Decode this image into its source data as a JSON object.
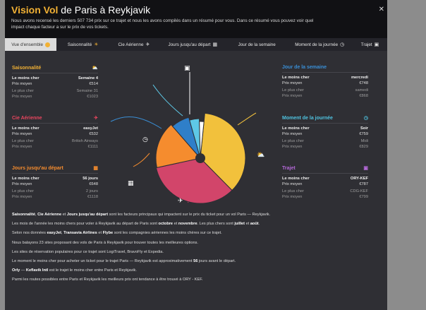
{
  "header": {
    "title_part1": "Vision Vol",
    "title_part2": " de Paris à Reykjavik",
    "description": "Nous avons recensé les derniers 507 734 prix sur ce trajet et nous les avons compilés dans un résumé pour vous. Dans ce résumé vous pouvez voir quel impact chaque facteur a sur le prix de vos tickets.",
    "close_label": "✕"
  },
  "tabs": [
    {
      "label": "Vue d'ensemble",
      "icon": "pie-icon",
      "active": true
    },
    {
      "label": "Saisonnalité",
      "icon": "sun-icon",
      "active": false
    },
    {
      "label": "Cie Aérienne",
      "icon": "plane-icon",
      "active": false
    },
    {
      "label": "Jours jusqu'au départ",
      "icon": "calendar-icon",
      "active": false
    },
    {
      "label": "Jour de la semaine",
      "icon": "",
      "active": false
    },
    {
      "label": "Moment de la journée",
      "icon": "clock-icon",
      "active": false
    },
    {
      "label": "Trajet",
      "icon": "bag-icon",
      "active": false
    }
  ],
  "cards": {
    "saisonnalite": {
      "title": "Saisonnalité",
      "color": "#f2b134",
      "icon": "sun-cloud-icon",
      "cheap_label": "Le moins cher",
      "cheap_value": "Semaine 4",
      "avg_label": "Prix moyen",
      "avg_value": "€514",
      "exp_label": "Le plus cher",
      "exp_value": "Semaine 31",
      "avg2_label": "Prix moyen",
      "avg2_value": "€1023"
    },
    "cie": {
      "title": "Cie Aérienne",
      "color": "#e8455e",
      "icon": "plane-icon",
      "cheap_label": "Le moins cher",
      "cheap_value": "easyJet",
      "avg_label": "Prix moyen",
      "avg_value": "€532",
      "exp_label": "Le plus cher",
      "exp_value": "British Airways",
      "avg2_label": "Prix moyen",
      "avg2_value": "€1111"
    },
    "jours": {
      "title": "Jours jusqu'au départ",
      "color": "#f58c2e",
      "icon": "calendar-icon",
      "cheap_label": "Le moins cher",
      "cheap_value": "56 jours",
      "avg_label": "Prix moyen",
      "avg_value": "€648",
      "exp_label": "Le plus cher",
      "exp_value": "2 jours",
      "avg2_label": "Prix moyen",
      "avg2_value": "€1118"
    },
    "semaine": {
      "title": "Jour de la semaine",
      "color": "#3a8fd6",
      "icon": "",
      "cheap_label": "Le moins cher",
      "cheap_value": "mercredi",
      "avg_label": "Prix moyen",
      "avg_value": "€748",
      "exp_label": "Le plus cher",
      "exp_value": "samedi",
      "avg2_label": "Prix moyen",
      "avg2_value": "€868"
    },
    "moment": {
      "title": "Moment de la journée",
      "color": "#4fc3e0",
      "icon": "clock-icon",
      "cheap_label": "Le moins cher",
      "cheap_value": "Soir",
      "avg_label": "Prix moyen",
      "avg_value": "€759",
      "exp_label": "Le plus cher",
      "exp_value": "Midi",
      "avg2_label": "Prix moyen",
      "avg2_value": "€829"
    },
    "trajet": {
      "title": "Trajet",
      "color": "#b469d8",
      "icon": "bag-icon",
      "cheap_label": "Le moins cher",
      "cheap_value": "ORY-KEF",
      "avg_label": "Prix moyen",
      "avg_value": "€787",
      "exp_label": "Le plus cher",
      "exp_value": "CDG-KEF",
      "avg2_label": "Prix moyen",
      "avg2_value": "€799"
    }
  },
  "pie": {
    "slices": [
      {
        "name": "saisonnalite",
        "color": "#f2c13c",
        "value": 36
      },
      {
        "name": "cie",
        "color": "#d2456a",
        "value": 34
      },
      {
        "name": "jours",
        "color": "#f58c2e",
        "value": 17
      },
      {
        "name": "semaine",
        "color": "#2f7fc9",
        "value": 7
      },
      {
        "name": "moment",
        "color": "#5ec8e6",
        "value": 4
      },
      {
        "name": "trajet",
        "color": "#ffffff",
        "value": 2
      }
    ]
  },
  "paragraphs": {
    "p1_a": "Saisonnalité",
    "p1_b": ", ",
    "p1_c": "Cie Aérienne",
    "p1_d": " et ",
    "p1_e": "Jours jusqu'au départ",
    "p1_f": " sont les facteurs principaux qui impactent sur le prix du ticket pour un vol Paris — Reykjavik.",
    "p2_a": "Les mois de l'année les moins chers pour voler à Reykjavik au départ de Paris sont ",
    "p2_b": "octobre",
    "p2_c": " et ",
    "p2_d": "novembre",
    "p2_e": ". Les plus chers sont ",
    "p2_f": "juillet",
    "p2_g": " et ",
    "p2_h": "août",
    "p2_i": ".",
    "p3_a": "Selon nos données ",
    "p3_b": "easyJet",
    "p3_c": ", ",
    "p3_d": "Transavia Airlines",
    "p3_e": " et ",
    "p3_f": "Flybe",
    "p3_g": " sont les compagnies aériennes les moins chères sur ce trajet.",
    "p4": "Nous balayons 23 sites proposant des vols de Paris à Reykjavik pour trouver toutes les meilleures options.",
    "p5": "Les sites de réservation populaires pour ce trajet sont LogiTravel, BravoFly et Expedia.",
    "p6_a": "Le moment le moins cher pour acheter un ticket pour le trajet Paris — Reykjavik est approximativement ",
    "p6_b": "56",
    "p6_c": " jours avant le départ.",
    "p7_a": "Orly",
    "p7_b": " — ",
    "p7_c": "Keflavik Intl",
    "p7_d": " est le trajet le moins cher entre Paris et Reykjavik.",
    "p8": "Parmi les routes possibles entre Paris et Reykjavik les meilleurs prix ont tendance à être trouvé à ORY - KEF."
  }
}
